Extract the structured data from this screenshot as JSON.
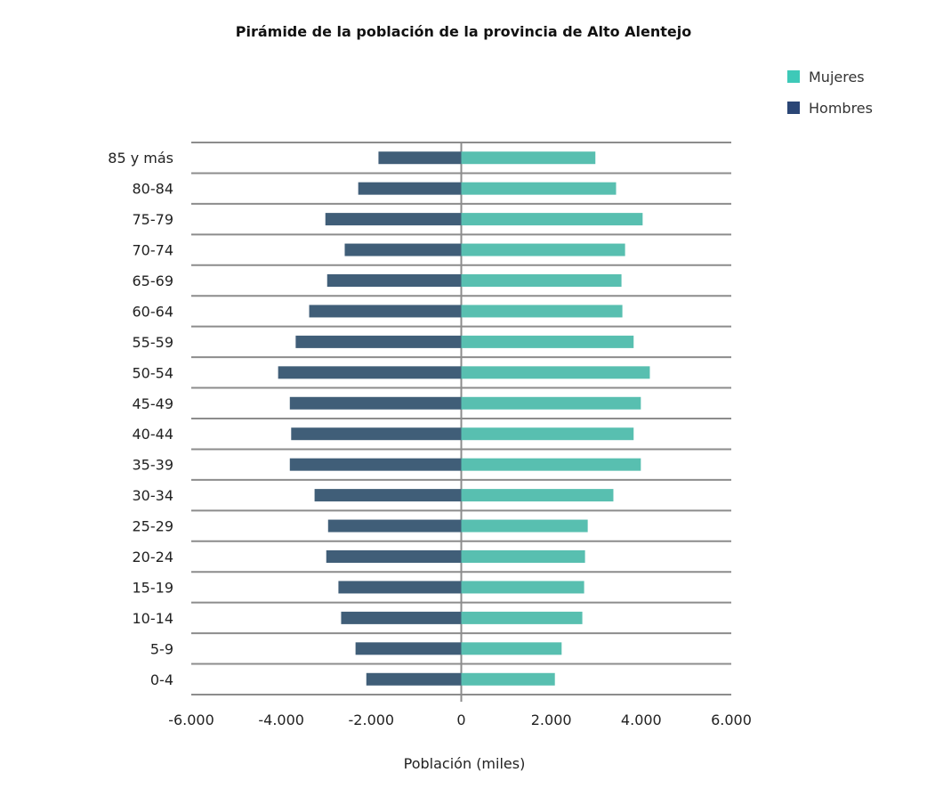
{
  "chart_data": {
    "type": "bar",
    "orientation": "horizontal",
    "subtype": "population-pyramid",
    "title": "Pirámide de la población de la provincia de Alto Alentejo",
    "xlabel": "Población (miles)",
    "ylabel": "",
    "xlim": [
      -6000,
      6000
    ],
    "xticks": [
      -6000,
      -4000,
      -2000,
      0,
      2000,
      4000,
      6000
    ],
    "xtick_labels": [
      "-6.000",
      "-4.000",
      "-2.000",
      "0",
      "2.000",
      "4.000",
      "6.000"
    ],
    "grid": "horizontal lines between categories",
    "legend_position": "top-right",
    "categories": [
      "85 y más",
      "80-84",
      "75-79",
      "70-74",
      "65-69",
      "60-64",
      "55-59",
      "50-54",
      "45-49",
      "40-44",
      "35-39",
      "30-34",
      "25-29",
      "20-24",
      "15-19",
      "10-14",
      "5-9",
      "0-4"
    ],
    "series": [
      {
        "name": "Mujeres",
        "color": "#58bfb0",
        "legend_color": "#3ec9b8",
        "values": [
          2980,
          3440,
          4030,
          3640,
          3560,
          3580,
          3830,
          4190,
          3990,
          3830,
          3990,
          3380,
          2810,
          2750,
          2730,
          2690,
          2230,
          2080
        ]
      },
      {
        "name": "Hombres",
        "color": "#405e78",
        "legend_color": "#2b4676",
        "values": [
          -1840,
          -2290,
          -3020,
          -2590,
          -2980,
          -3380,
          -3680,
          -4070,
          -3810,
          -3780,
          -3810,
          -3260,
          -2960,
          -3000,
          -2730,
          -2670,
          -2350,
          -2110
        ]
      }
    ]
  }
}
